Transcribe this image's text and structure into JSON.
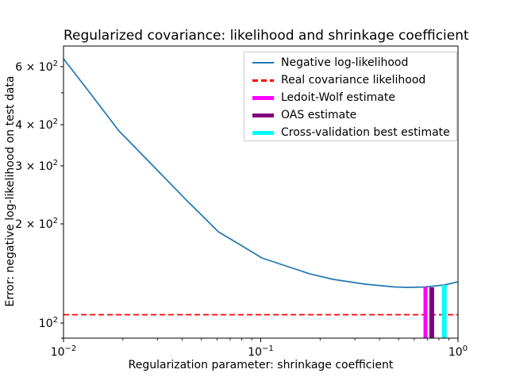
{
  "chart_data": {
    "type": "line",
    "title": "Regularized covariance: likelihood and shrinkage coefficient",
    "xlabel": "Regularization parameter: shrinkage coefficient",
    "ylabel": "Error: negative log-likelihood on test data",
    "xscale": "log",
    "yscale": "log",
    "xlim": [
      0.01,
      1.0
    ],
    "ylim": [
      90,
      693
    ],
    "grid": false,
    "series": [
      {
        "name": "Negative log-likelihood",
        "color": "#1f77b4",
        "style": "solid",
        "width": 1.7,
        "x": [
          0.01,
          0.0138,
          0.0191,
          0.028,
          0.042,
          0.0506,
          0.0609,
          0.0768,
          0.1014,
          0.1339,
          0.1768,
          0.2334,
          0.3382,
          0.4764,
          0.5527,
          0.6839,
          0.8543,
          1.0
        ],
        "y": [
          634,
          494,
          383,
          303,
          236,
          211.5,
          189.3,
          174.2,
          157.6,
          149.1,
          141.1,
          135.7,
          131.2,
          128.7,
          128.3,
          128.7,
          130.5,
          133.4
        ]
      }
    ],
    "hlines": [
      {
        "name": "Real covariance likelihood",
        "color": "#ff0000",
        "style": "dashed",
        "width": 1.7,
        "y": 106
      }
    ],
    "vlines": [
      {
        "name": "Ledoit-Wolf estimate",
        "color": "#ff00ff",
        "x": 0.684,
        "ymin": 90,
        "ymax": 128.7,
        "width": 5
      },
      {
        "name": "OAS estimate",
        "color": "#800080",
        "x": 0.736,
        "ymin": 90,
        "ymax": 128.4,
        "width": 6
      },
      {
        "name": "Cross-validation best estimate",
        "color": "#00ffff",
        "x": 0.852,
        "ymin": 90,
        "ymax": 130.4,
        "width": 6
      }
    ],
    "x_ticks": [
      {
        "v": 0.01,
        "prefix": "10",
        "exp": "−2"
      },
      {
        "v": 0.1,
        "prefix": "10",
        "exp": "−1"
      },
      {
        "v": 1.0,
        "prefix": "10",
        "exp": "0"
      }
    ],
    "x_minor_ticks": [
      0.02,
      0.03,
      0.04,
      0.05,
      0.06,
      0.07,
      0.08,
      0.09,
      0.2,
      0.3,
      0.4,
      0.5,
      0.6,
      0.7,
      0.8,
      0.9
    ],
    "y_ticks": [
      {
        "v": 600,
        "prefix": "6 × 10",
        "exp": "2"
      },
      {
        "v": 500,
        "prefix": null,
        "exp": null
      },
      {
        "v": 400,
        "prefix": "4 × 10",
        "exp": "2"
      },
      {
        "v": 300,
        "prefix": "3 × 10",
        "exp": "2"
      },
      {
        "v": 200,
        "prefix": "2 × 10",
        "exp": "2"
      },
      {
        "v": 100,
        "prefix": "10",
        "exp": "2"
      },
      {
        "v": 90,
        "prefix": null,
        "exp": null
      }
    ],
    "legend": {
      "position": "upper right",
      "entries": [
        {
          "label": "Negative log-likelihood",
          "color": "#1f77b4",
          "style": "solid",
          "thickness": 2
        },
        {
          "label": "Real covariance likelihood",
          "color": "#ff0000",
          "style": "dashed",
          "thickness": 3
        },
        {
          "label": "Ledoit-Wolf estimate",
          "color": "#ff00ff",
          "style": "solid",
          "thickness": 5
        },
        {
          "label": "OAS estimate",
          "color": "#800080",
          "style": "solid",
          "thickness": 5
        },
        {
          "label": "Cross-validation best estimate",
          "color": "#00ffff",
          "style": "solid",
          "thickness": 5
        }
      ]
    }
  }
}
